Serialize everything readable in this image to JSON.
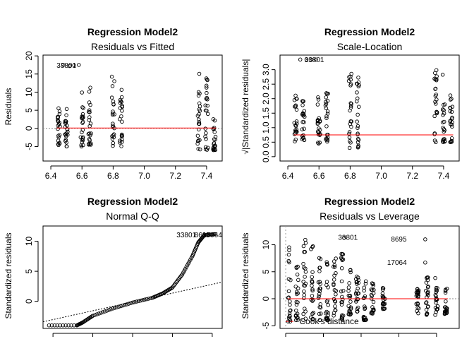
{
  "chart_data": [
    {
      "type": "scatter",
      "title": "Regression Model2",
      "subtitle": "Residuals vs Fitted",
      "xlabel": "",
      "ylabel": "Residuals",
      "xlim": [
        6.35,
        7.5
      ],
      "ylim": [
        -9,
        21
      ],
      "xticks": [
        6.4,
        6.6,
        6.8,
        7.0,
        7.2,
        7.4
      ],
      "xtick_labels": [
        "6.4",
        "6.6",
        "6.8",
        "7.0",
        "7.2",
        "7.4"
      ],
      "yticks": [
        -5,
        0,
        5,
        10,
        15,
        20
      ],
      "ytick_labels": [
        "-5",
        "0",
        "5",
        "10",
        "15",
        "20"
      ],
      "columns": [
        {
          "x": 6.45,
          "ymin": -5,
          "ymax": 6
        },
        {
          "x": 6.5,
          "ymin": -5,
          "ymax": 7
        },
        {
          "x": 6.6,
          "ymin": -5,
          "ymax": 10
        },
        {
          "x": 6.65,
          "ymin": -5,
          "ymax": 12
        },
        {
          "x": 6.8,
          "ymin": -5,
          "ymax": 15
        },
        {
          "x": 6.85,
          "ymin": -5,
          "ymax": 13
        },
        {
          "x": 7.35,
          "ymin": -6,
          "ymax": 16
        },
        {
          "x": 7.4,
          "ymin": -6,
          "ymax": 14
        },
        {
          "x": 7.45,
          "ymin": -6,
          "ymax": 5
        }
      ],
      "outliers": [
        {
          "x": 6.48,
          "y": 17.5
        },
        {
          "x": 6.52,
          "y": 17.2
        },
        {
          "x": 6.55,
          "y": 17.4
        },
        {
          "x": 6.58,
          "y": 17.5
        }
      ],
      "annotations": [
        {
          "text": "33801",
          "x": 6.5,
          "y": 17.3
        }
      ],
      "smooth_y": 0.1,
      "ref_y": 0
    },
    {
      "type": "scatter",
      "title": "Regression Model2",
      "subtitle": "Scale-Location",
      "xlabel": "",
      "ylabel": "√|Standardized residuals|",
      "xlim": [
        6.35,
        7.5
      ],
      "ylim": [
        -0.15,
        3.6
      ],
      "xticks": [
        6.4,
        6.6,
        6.8,
        7.0,
        7.2,
        7.4
      ],
      "xtick_labels": [
        "6.4",
        "6.6",
        "6.8",
        "7.0",
        "7.2",
        "7.4"
      ],
      "yticks": [
        0,
        0.5,
        1,
        1.5,
        2,
        2.5,
        3
      ],
      "ytick_labels": [
        "0.0",
        "0.5",
        "1.0",
        "1.5",
        "2.0",
        "2.5",
        "3.0"
      ],
      "columns": [
        {
          "x": 6.45,
          "ymin": 0.5,
          "ymax": 2.2
        },
        {
          "x": 6.5,
          "ymin": 0.5,
          "ymax": 2.0
        },
        {
          "x": 6.6,
          "ymin": 0.45,
          "ymax": 2.2
        },
        {
          "x": 6.65,
          "ymin": 0.45,
          "ymax": 2.5
        },
        {
          "x": 6.8,
          "ymin": 0.3,
          "ymax": 2.9
        },
        {
          "x": 6.85,
          "ymin": 0.25,
          "ymax": 2.8
        },
        {
          "x": 7.35,
          "ymin": 0.5,
          "ymax": 3.1
        },
        {
          "x": 7.4,
          "ymin": 0.5,
          "ymax": 3.3
        },
        {
          "x": 7.45,
          "ymin": 0.5,
          "ymax": 2.4
        }
      ],
      "outliers": [
        {
          "x": 6.48,
          "y": 3.35
        },
        {
          "x": 6.52,
          "y": 3.35
        },
        {
          "x": 6.55,
          "y": 3.35
        },
        {
          "x": 6.58,
          "y": 3.35
        }
      ],
      "annotations": [
        {
          "text": "33801",
          "x": 6.57,
          "y": 3.33
        }
      ],
      "smooth_y": 0.75,
      "ref_y": null
    },
    {
      "type": "scatter",
      "title": "Regression Model2",
      "subtitle": "Normal Q-Q",
      "xlabel": "",
      "ylabel": "Standardized residuals",
      "xlim": [
        -4.5,
        4.5
      ],
      "ylim": [
        -4.5,
        13
      ],
      "xticks": [
        -4,
        -2,
        0,
        2,
        4
      ],
      "xtick_labels": [
        "",
        "",
        "",
        "",
        ""
      ],
      "yticks": [
        0,
        5,
        10
      ],
      "ytick_labels": [
        "0",
        "5",
        "10"
      ],
      "qq_curve": [
        [
          -4.2,
          -4
        ],
        [
          -2.8,
          -4
        ],
        [
          -2.5,
          -3.5
        ],
        [
          -2,
          -2.4
        ],
        [
          -1,
          -1.2
        ],
        [
          0,
          -0.2
        ],
        [
          1,
          0.6
        ],
        [
          1.5,
          1.3
        ],
        [
          2,
          2.3
        ],
        [
          2.5,
          4.5
        ],
        [
          3,
          7.5
        ],
        [
          3.3,
          9.8
        ],
        [
          3.6,
          11.0
        ],
        [
          4.2,
          11.2
        ]
      ],
      "ref_line": [
        [
          -4.5,
          -3.4
        ],
        [
          4.5,
          3.2
        ]
      ],
      "annotations": [
        {
          "text": "33801",
          "x": 2.7,
          "y": 11.0
        },
        {
          "text": "8695",
          "x": 3.5,
          "y": 11.0
        },
        {
          "text": "17064",
          "x": 4.0,
          "y": 11.0
        }
      ]
    },
    {
      "type": "scatter",
      "title": "Regression Model2",
      "subtitle": "Residuals vs Leverage",
      "xlabel": "",
      "ylabel": "Standardized residuals",
      "xlim": [
        -0.03,
        0.92
      ],
      "ylim": [
        -5.5,
        14
      ],
      "xticks": [
        0,
        0.2,
        0.4,
        0.6,
        0.8
      ],
      "xtick_labels": [
        "",
        "",
        "",
        "",
        ""
      ],
      "yticks": [
        -5,
        0,
        5,
        10
      ],
      "ytick_labels": [
        "-5",
        "0",
        "5",
        "10"
      ],
      "columns": [
        {
          "x": 0.02,
          "ymin": -4.5,
          "ymax": 10
        },
        {
          "x": 0.06,
          "ymin": -4,
          "ymax": 7
        },
        {
          "x": 0.1,
          "ymin": -4,
          "ymax": 11
        },
        {
          "x": 0.14,
          "ymin": -4,
          "ymax": 10.5
        },
        {
          "x": 0.18,
          "ymin": -4,
          "ymax": 9
        },
        {
          "x": 0.22,
          "ymin": -4,
          "ymax": 8
        },
        {
          "x": 0.26,
          "ymin": -4,
          "ymax": 8
        },
        {
          "x": 0.3,
          "ymin": -4,
          "ymax": 9
        },
        {
          "x": 0.34,
          "ymin": -3,
          "ymax": 6
        },
        {
          "x": 0.38,
          "ymin": -3,
          "ymax": 5
        },
        {
          "x": 0.42,
          "ymin": -4,
          "ymax": 4
        },
        {
          "x": 0.46,
          "ymin": -3,
          "ymax": 3
        },
        {
          "x": 0.52,
          "ymin": -2,
          "ymax": 2
        },
        {
          "x": 0.7,
          "ymin": -3,
          "ymax": 3
        },
        {
          "x": 0.75,
          "ymin": -3,
          "ymax": 4
        },
        {
          "x": 0.8,
          "ymin": -3,
          "ymax": 4
        },
        {
          "x": 0.85,
          "ymin": -3,
          "ymax": 2
        }
      ],
      "outliers": [
        {
          "x": 0.31,
          "y": 11.3
        },
        {
          "x": 0.74,
          "y": 11.0
        },
        {
          "x": 0.74,
          "y": 6.7
        }
      ],
      "annotations": [
        {
          "text": "33801",
          "x": 0.33,
          "y": 11.3
        },
        {
          "text": "8695",
          "x": 0.6,
          "y": 11.0
        },
        {
          "text": "17064",
          "x": 0.59,
          "y": 6.7
        }
      ],
      "smooth_y": 0,
      "ref_y": 0,
      "vline_x": 0,
      "legend_text": "Cook's distance",
      "cooks_segment": [
        [
          0.0,
          -4.2
        ],
        [
          0.05,
          -4.2
        ]
      ]
    }
  ]
}
